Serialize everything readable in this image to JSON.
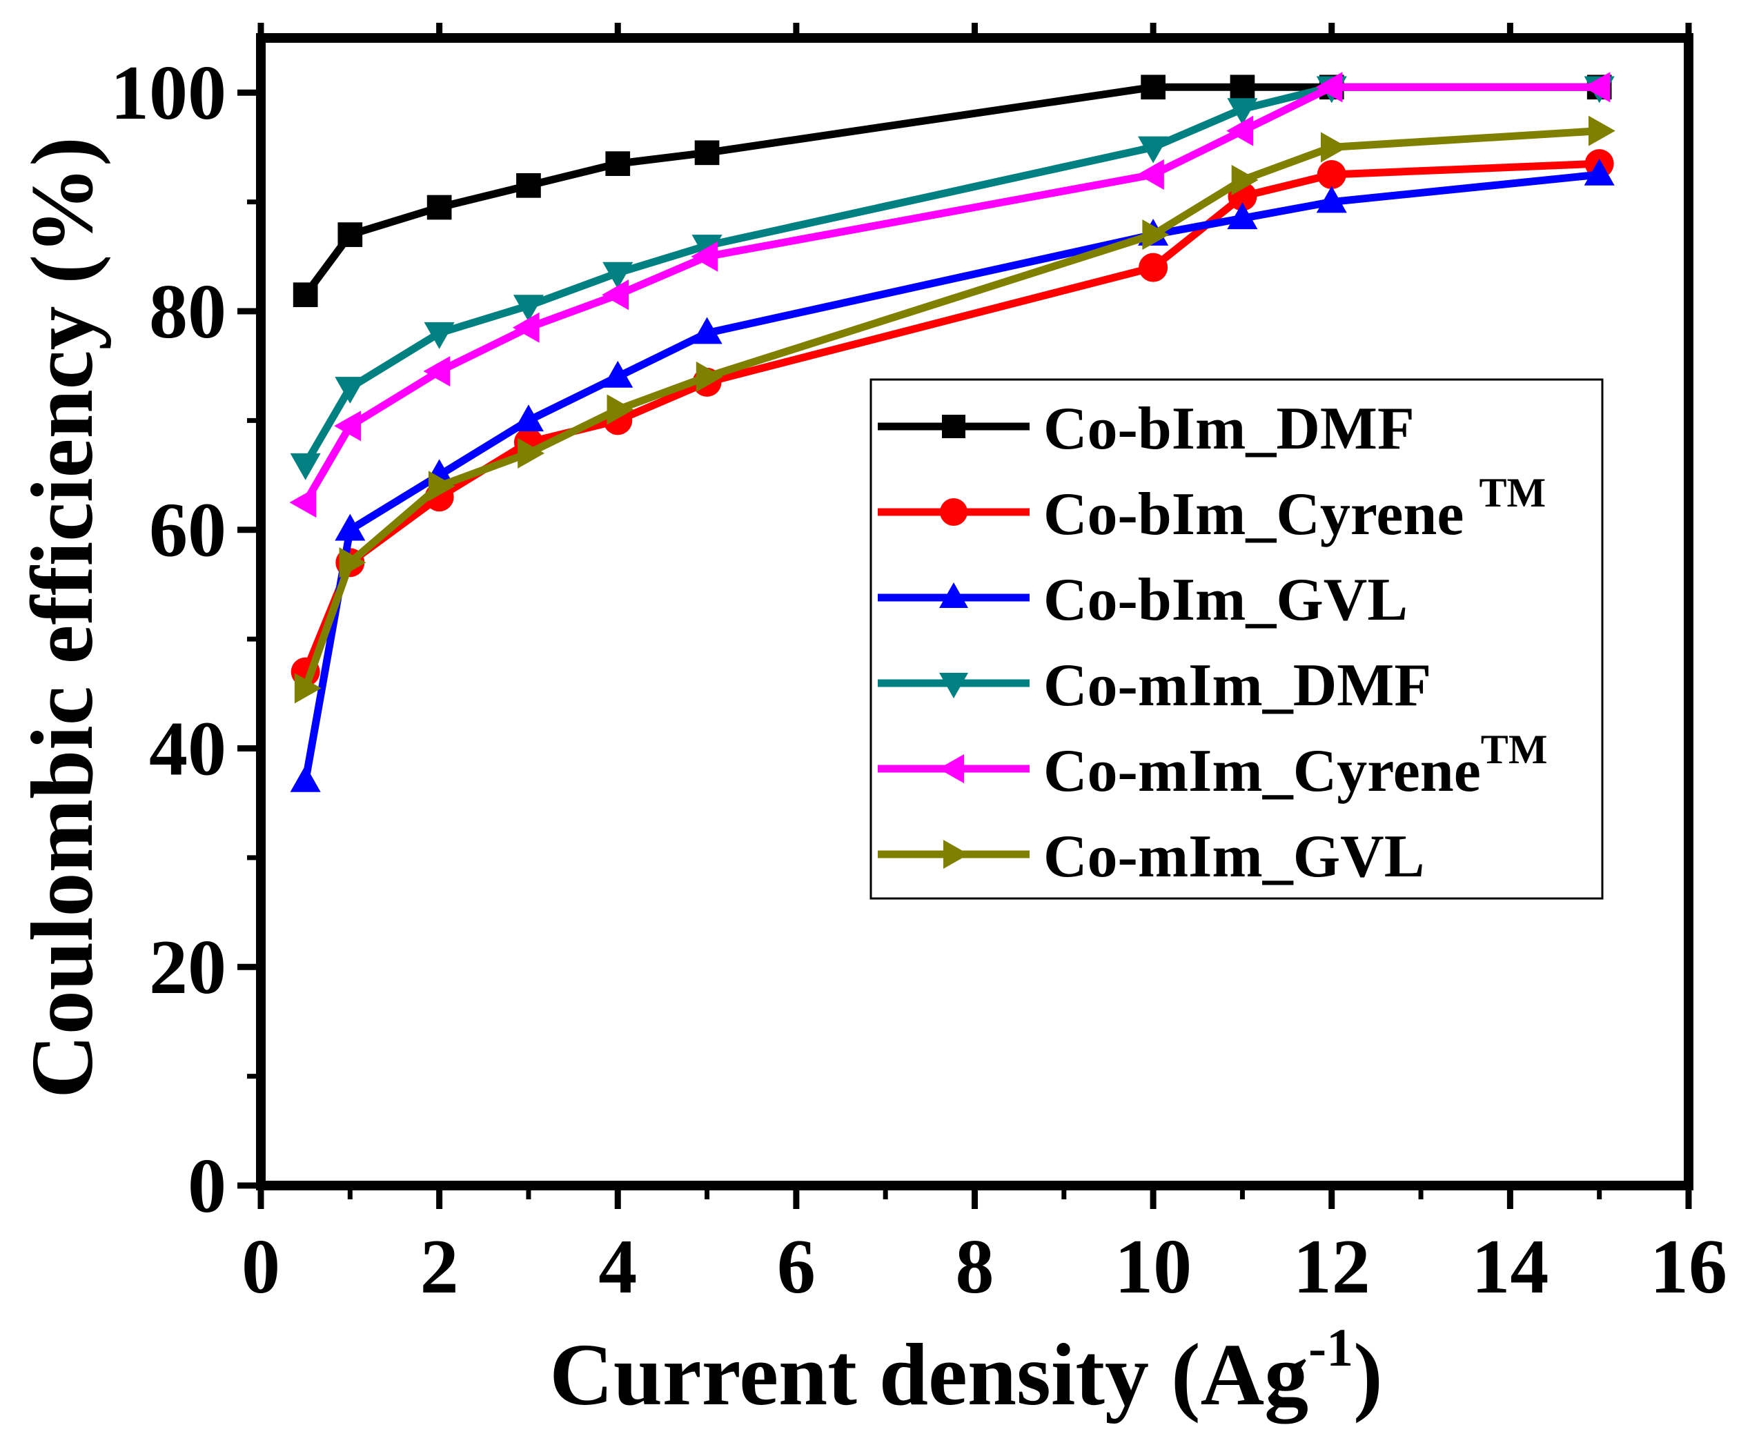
{
  "chart_data": {
    "type": "line",
    "xlabel": "Current density (Ag",
    "xlabel_sup": "-1",
    "xlabel_close": ")",
    "ylabel": "Coulombic efficiency (%)",
    "xlim": [
      0,
      16
    ],
    "ylim": [
      0,
      105
    ],
    "xticks": [
      0,
      2,
      4,
      6,
      8,
      10,
      12,
      14,
      16
    ],
    "yticks": [
      0,
      20,
      40,
      60,
      80,
      100
    ],
    "grid": false,
    "legend_position": "center-right",
    "x": [
      0.5,
      1,
      2,
      3,
      4,
      5,
      10,
      11,
      12,
      15
    ],
    "series": [
      {
        "name": "Co-bIm_DMF",
        "color": "#000000",
        "marker": "square",
        "values": [
          81.5,
          87,
          89.5,
          91.5,
          93.5,
          94.5,
          100.5,
          100.5,
          100.5,
          100.5
        ]
      },
      {
        "name": "Co-bIm_Cyrene",
        "name_sup": "TM",
        "color": "#ff0000",
        "marker": "circle",
        "values": [
          47,
          57,
          63,
          68,
          70,
          73.5,
          84,
          90.5,
          92.5,
          93.5
        ]
      },
      {
        "name": "Co-bIm_GVL",
        "color": "#0000ff",
        "marker": "triangle-up",
        "values": [
          37,
          60,
          65,
          70,
          74,
          78,
          87,
          88.5,
          90,
          92.5
        ]
      },
      {
        "name": "Co-mIm_DMF",
        "color": "#008080",
        "marker": "triangle-down",
        "values": [
          66,
          73,
          78,
          80.5,
          83.5,
          86,
          95,
          98.5,
          100.5,
          100.5
        ]
      },
      {
        "name": "Co-mIm_Cyrene",
        "name_sup": "TM",
        "color": "#ff00ff",
        "marker": "triangle-left",
        "values": [
          62.5,
          69.5,
          74.5,
          78.5,
          81.5,
          85,
          92.5,
          96.5,
          100.5,
          100.5
        ]
      },
      {
        "name": "Co-mIm_GVL",
        "color": "#808000",
        "marker": "triangle-right",
        "values": [
          45.5,
          57,
          64,
          67,
          71,
          74,
          87,
          92,
          95,
          96.5
        ]
      }
    ]
  }
}
